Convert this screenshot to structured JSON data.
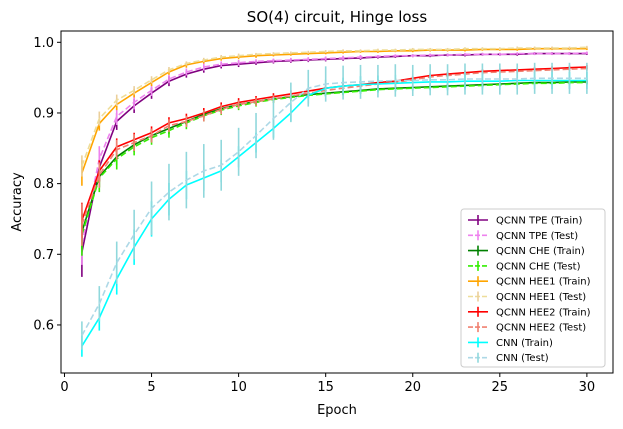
{
  "chart_data": {
    "type": "line",
    "title": "SO(4) circuit, Hinge loss",
    "xlabel": "Epoch",
    "ylabel": "Accuracy",
    "xlim": [
      -0.2,
      31.5
    ],
    "ylim": [
      0.532,
      1.016
    ],
    "xticks": [
      0,
      5,
      10,
      15,
      20,
      25,
      30
    ],
    "yticks": [
      0.6,
      0.7,
      0.8,
      0.9,
      1.0
    ],
    "ytick_labels": [
      "0.6",
      "0.7",
      "0.8",
      "0.9",
      "1.0"
    ],
    "legend_position": "lower-right",
    "series": [
      {
        "name": "QCNN TPE (Train)",
        "color": "#800080",
        "dashed": false,
        "err_color": "#800080",
        "values": [
          0.703,
          0.823,
          0.888,
          0.91,
          0.928,
          0.945,
          0.955,
          0.962,
          0.967,
          0.969,
          0.971,
          0.973,
          0.974,
          0.975,
          0.976,
          0.977,
          0.978,
          0.979,
          0.98,
          0.981,
          0.981,
          0.982,
          0.982,
          0.983,
          0.983,
          0.983,
          0.984,
          0.984,
          0.984,
          0.984
        ],
        "errors": [
          0.035,
          0.02,
          0.012,
          0.01,
          0.008,
          0.007,
          0.005,
          0.005,
          0.004,
          0.004,
          0.003,
          0.003,
          0.003,
          0.003,
          0.003,
          0.003,
          0.003,
          0.002,
          0.002,
          0.002,
          0.002,
          0.002,
          0.002,
          0.002,
          0.002,
          0.002,
          0.002,
          0.002,
          0.002,
          0.002
        ]
      },
      {
        "name": "QCNN TPE (Test)",
        "color": "#ee82ee",
        "dashed": true,
        "err_color": "#ee82ee",
        "values": [
          0.715,
          0.835,
          0.895,
          0.915,
          0.932,
          0.948,
          0.958,
          0.965,
          0.969,
          0.971,
          0.973,
          0.974,
          0.975,
          0.976,
          0.977,
          0.978,
          0.979,
          0.98,
          0.981,
          0.981,
          0.982,
          0.982,
          0.983,
          0.983,
          0.983,
          0.984,
          0.984,
          0.984,
          0.984,
          0.985
        ],
        "errors": [
          0.03,
          0.018,
          0.012,
          0.01,
          0.008,
          0.006,
          0.005,
          0.005,
          0.004,
          0.004,
          0.003,
          0.003,
          0.003,
          0.003,
          0.003,
          0.003,
          0.003,
          0.002,
          0.002,
          0.002,
          0.002,
          0.002,
          0.002,
          0.002,
          0.002,
          0.002,
          0.002,
          0.002,
          0.002,
          0.002
        ]
      },
      {
        "name": "QCNN CHE (Train)",
        "color": "#008000",
        "dashed": false,
        "err_color": "#008000",
        "values": [
          0.732,
          0.81,
          0.838,
          0.855,
          0.868,
          0.878,
          0.888,
          0.898,
          0.906,
          0.912,
          0.916,
          0.92,
          0.923,
          0.926,
          0.928,
          0.93,
          0.932,
          0.934,
          0.935,
          0.936,
          0.937,
          0.938,
          0.939,
          0.94,
          0.941,
          0.942,
          0.943,
          0.943,
          0.944,
          0.944
        ],
        "errors": [
          0.025,
          0.015,
          0.012,
          0.01,
          0.009,
          0.008,
          0.007,
          0.006,
          0.006,
          0.005,
          0.005,
          0.005,
          0.004,
          0.004,
          0.004,
          0.004,
          0.004,
          0.003,
          0.003,
          0.003,
          0.003,
          0.003,
          0.003,
          0.003,
          0.003,
          0.003,
          0.003,
          0.003,
          0.003,
          0.003
        ]
      },
      {
        "name": "QCNN CHE (Test)",
        "color": "#33ee00",
        "dashed": true,
        "err_color": "#33ee00",
        "values": [
          0.728,
          0.808,
          0.835,
          0.852,
          0.865,
          0.875,
          0.886,
          0.896,
          0.904,
          0.91,
          0.915,
          0.919,
          0.922,
          0.925,
          0.927,
          0.929,
          0.931,
          0.933,
          0.934,
          0.935,
          0.936,
          0.937,
          0.938,
          0.939,
          0.94,
          0.941,
          0.942,
          0.942,
          0.943,
          0.943
        ],
        "errors": [
          0.03,
          0.02,
          0.015,
          0.012,
          0.01,
          0.01,
          0.009,
          0.008,
          0.007,
          0.006,
          0.006,
          0.005,
          0.005,
          0.005,
          0.004,
          0.004,
          0.004,
          0.004,
          0.003,
          0.003,
          0.003,
          0.003,
          0.003,
          0.003,
          0.003,
          0.003,
          0.003,
          0.003,
          0.003,
          0.003
        ]
      },
      {
        "name": "QCNN HEE1 (Train)",
        "color": "#ffa500",
        "dashed": false,
        "err_color": "#ffa500",
        "values": [
          0.815,
          0.885,
          0.912,
          0.928,
          0.943,
          0.958,
          0.968,
          0.973,
          0.977,
          0.979,
          0.981,
          0.982,
          0.983,
          0.984,
          0.985,
          0.986,
          0.987,
          0.987,
          0.988,
          0.988,
          0.989,
          0.989,
          0.989,
          0.99,
          0.99,
          0.99,
          0.991,
          0.991,
          0.991,
          0.991
        ],
        "errors": [
          0.018,
          0.01,
          0.008,
          0.006,
          0.005,
          0.004,
          0.004,
          0.003,
          0.003,
          0.003,
          0.003,
          0.002,
          0.002,
          0.002,
          0.002,
          0.002,
          0.002,
          0.002,
          0.002,
          0.002,
          0.002,
          0.002,
          0.002,
          0.002,
          0.002,
          0.002,
          0.002,
          0.002,
          0.002,
          0.002
        ]
      },
      {
        "name": "QCNN HEE1 (Test)",
        "color": "#eedd99",
        "dashed": true,
        "err_color": "#ebcf9b",
        "values": [
          0.825,
          0.892,
          0.918,
          0.932,
          0.947,
          0.961,
          0.97,
          0.975,
          0.979,
          0.981,
          0.983,
          0.984,
          0.985,
          0.986,
          0.987,
          0.988,
          0.988,
          0.989,
          0.989,
          0.99,
          0.99,
          0.99,
          0.991,
          0.991,
          0.991,
          0.992,
          0.992,
          0.992,
          0.992,
          0.993
        ],
        "errors": [
          0.015,
          0.01,
          0.008,
          0.006,
          0.005,
          0.004,
          0.003,
          0.003,
          0.003,
          0.003,
          0.002,
          0.002,
          0.002,
          0.002,
          0.002,
          0.002,
          0.002,
          0.002,
          0.002,
          0.002,
          0.002,
          0.002,
          0.002,
          0.002,
          0.002,
          0.002,
          0.002,
          0.002,
          0.002,
          0.002
        ]
      },
      {
        "name": "QCNN HEE2 (Train)",
        "color": "#ff0000",
        "dashed": false,
        "err_color": "#ff0000",
        "values": [
          0.748,
          0.818,
          0.852,
          0.862,
          0.872,
          0.886,
          0.892,
          0.9,
          0.909,
          0.915,
          0.919,
          0.923,
          0.927,
          0.931,
          0.935,
          0.938,
          0.94,
          0.943,
          0.945,
          0.949,
          0.953,
          0.955,
          0.957,
          0.959,
          0.96,
          0.961,
          0.962,
          0.963,
          0.964,
          0.965
        ],
        "errors": [
          0.025,
          0.015,
          0.012,
          0.01,
          0.009,
          0.008,
          0.007,
          0.007,
          0.006,
          0.006,
          0.005,
          0.005,
          0.005,
          0.005,
          0.004,
          0.004,
          0.004,
          0.004,
          0.004,
          0.003,
          0.003,
          0.003,
          0.003,
          0.003,
          0.003,
          0.003,
          0.003,
          0.003,
          0.003,
          0.003
        ]
      },
      {
        "name": "QCNN HEE2 (Test)",
        "color": "#f08070",
        "dashed": true,
        "err_color": "#f08070",
        "values": [
          0.742,
          0.812,
          0.848,
          0.858,
          0.868,
          0.882,
          0.888,
          0.896,
          0.905,
          0.912,
          0.916,
          0.92,
          0.924,
          0.928,
          0.932,
          0.935,
          0.938,
          0.941,
          0.943,
          0.947,
          0.951,
          0.953,
          0.955,
          0.957,
          0.958,
          0.959,
          0.96,
          0.961,
          0.962,
          0.963
        ],
        "errors": [
          0.03,
          0.018,
          0.014,
          0.012,
          0.01,
          0.009,
          0.008,
          0.008,
          0.007,
          0.006,
          0.006,
          0.005,
          0.005,
          0.005,
          0.005,
          0.004,
          0.004,
          0.004,
          0.004,
          0.004,
          0.003,
          0.003,
          0.003,
          0.003,
          0.003,
          0.003,
          0.003,
          0.003,
          0.003,
          0.003
        ]
      },
      {
        "name": "CNN (Train)",
        "color": "#00ffff",
        "dashed": false,
        "err_color": "#00ffff",
        "values": [
          0.57,
          0.61,
          0.665,
          0.71,
          0.75,
          0.778,
          0.798,
          0.808,
          0.818,
          0.838,
          0.858,
          0.878,
          0.9,
          0.925,
          0.935,
          0.938,
          0.94,
          0.941,
          0.942,
          0.943,
          0.944,
          0.944,
          0.945,
          0.945,
          0.945,
          0.946,
          0.946,
          0.946,
          0.946,
          0.946
        ],
        "errors": [
          0.015,
          0.018,
          0.022,
          0.025,
          0.025,
          0.023,
          0.02,
          0.018,
          0.016,
          0.015,
          0.014,
          0.013,
          0.012,
          0.012,
          0.012,
          0.012,
          0.012,
          0.012,
          0.012,
          0.012,
          0.012,
          0.012,
          0.012,
          0.012,
          0.012,
          0.012,
          0.012,
          0.012,
          0.012,
          0.012
        ]
      },
      {
        "name": "CNN (Test)",
        "color": "#add8e6",
        "dashed": true,
        "err_color": "#90d8dc",
        "values": [
          0.585,
          0.63,
          0.688,
          0.728,
          0.765,
          0.788,
          0.805,
          0.818,
          0.826,
          0.845,
          0.868,
          0.892,
          0.915,
          0.935,
          0.941,
          0.943,
          0.944,
          0.945,
          0.946,
          0.946,
          0.947,
          0.947,
          0.948,
          0.948,
          0.948,
          0.948,
          0.949,
          0.949,
          0.949,
          0.949
        ],
        "errors": [
          0.02,
          0.025,
          0.03,
          0.035,
          0.038,
          0.04,
          0.04,
          0.038,
          0.036,
          0.034,
          0.032,
          0.03,
          0.028,
          0.026,
          0.025,
          0.024,
          0.024,
          0.023,
          0.023,
          0.022,
          0.022,
          0.022,
          0.022,
          0.022,
          0.022,
          0.022,
          0.022,
          0.022,
          0.022,
          0.022
        ]
      }
    ]
  }
}
